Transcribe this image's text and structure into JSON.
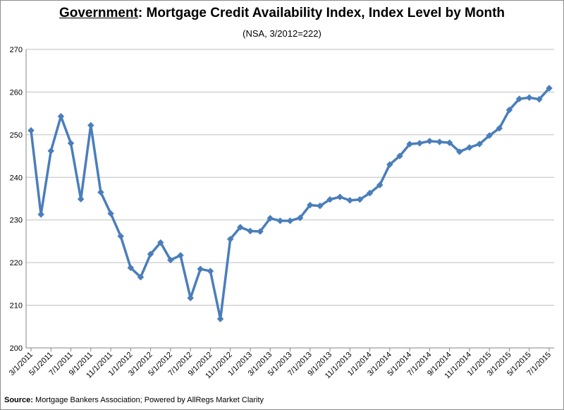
{
  "chart_data": {
    "type": "line",
    "title_prefix": "Government",
    "title_rest": ": Mortgage Credit Availability Index, Index Level by Month",
    "subtitle": "(NSA, 3/2012=222)",
    "xlabel": "",
    "ylabel": "",
    "ylim": [
      200,
      270
    ],
    "yticks": [
      200,
      210,
      220,
      230,
      240,
      250,
      260,
      270
    ],
    "grid": true,
    "legend": "none",
    "line_color": "#4a7ebb",
    "x_tick_labels": [
      "3/1/2011",
      "5/1/2011",
      "7/1/2011",
      "9/1/2011",
      "11/1/2011",
      "1/1/2012",
      "3/1/2012",
      "5/1/2012",
      "7/1/2012",
      "9/1/2012",
      "11/1/2012",
      "1/1/2013",
      "3/1/2013",
      "5/1/2013",
      "7/1/2013",
      "9/1/2013",
      "11/1/2013",
      "1/1/2014",
      "3/1/2014",
      "5/1/2014",
      "7/1/2014",
      "9/1/2014",
      "11/1/2014",
      "1/1/2015",
      "3/1/2015",
      "5/1/2015",
      "7/1/2015"
    ],
    "series": [
      {
        "values": [
          251.0,
          231.3,
          246.2,
          254.3,
          248.0,
          234.9,
          252.2,
          236.5,
          231.5,
          226.2,
          218.8,
          216.6,
          222.0,
          224.7,
          220.6,
          221.7,
          211.7,
          218.5,
          218.0,
          206.8,
          225.5,
          228.3,
          227.4,
          227.3,
          230.4,
          229.8,
          229.8,
          230.5,
          233.5,
          233.3,
          234.8,
          235.4,
          234.6,
          234.8,
          236.3,
          238.2,
          243.0,
          245.0,
          247.8,
          248.0,
          248.5,
          248.3,
          248.1,
          246.0,
          247.0,
          247.8,
          249.8,
          251.5,
          255.8,
          258.4,
          258.7,
          258.3,
          260.9
        ]
      }
    ]
  },
  "source": {
    "label": "Source:",
    "text": " Mortgage Bankers Association; Powered by AllRegs Market Clarity"
  }
}
